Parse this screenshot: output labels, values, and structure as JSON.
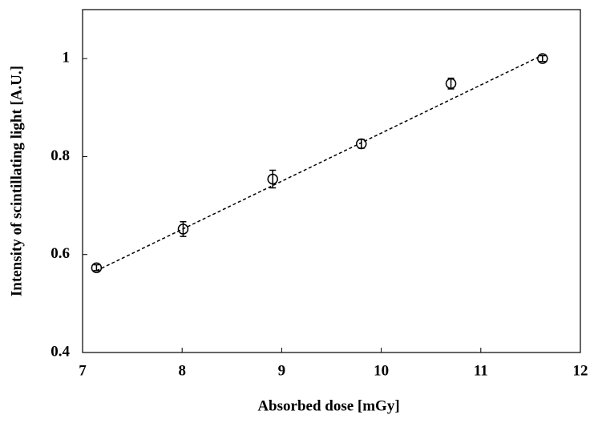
{
  "chart_data": {
    "type": "scatter",
    "x_label": "Absorbed dose [mGy]",
    "y_label": "Intensity of scintillating light [A.U.]",
    "x": [
      7.14,
      8.01,
      8.91,
      9.8,
      10.7,
      11.62
    ],
    "series": [
      {
        "color": "#000000",
        "values": [
          0.573,
          0.652,
          0.754,
          0.826,
          0.949,
          1.0
        ],
        "errors": [
          0.006,
          0.015,
          0.018,
          0.009,
          0.011,
          0.006
        ]
      }
    ],
    "fit": {
      "x": [
        7.14,
        11.62
      ],
      "y": [
        0.567,
        1.007
      ]
    },
    "xlim": [
      7,
      12
    ],
    "xticks": [
      7,
      8,
      9,
      10,
      11,
      12
    ],
    "ylim": [
      0.4,
      1.1
    ],
    "yticks": [
      0.4,
      0.6,
      0.8,
      1
    ],
    "grid": false
  }
}
